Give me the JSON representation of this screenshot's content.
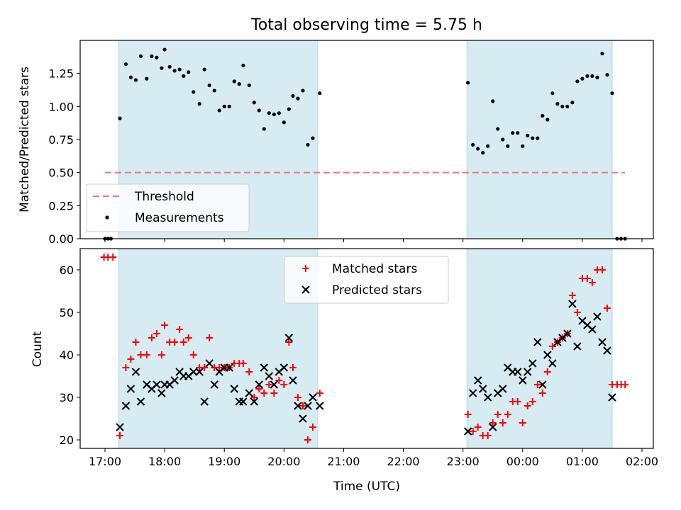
{
  "chart_data": [
    {
      "type": "scatter",
      "title": "Total observing time = 5.75 h",
      "xlabel": "",
      "ylabel": "Matched/Predicted stars",
      "ylim": [
        0,
        1.5
      ],
      "yticks": [
        "0.00",
        "0.25",
        "0.50",
        "0.75",
        "1.00",
        "1.25"
      ],
      "shaded_intervals": [
        [
          "17:14",
          "20:34"
        ],
        [
          "23:04",
          "01:30"
        ]
      ],
      "threshold": {
        "name": "Threshold",
        "value": 0.5,
        "x": [
          "17:00",
          "01:43"
        ],
        "color": "#f07878"
      },
      "legend": {
        "position": "lower-left",
        "entries": [
          "Threshold",
          "Measurements"
        ]
      },
      "series": [
        {
          "name": "Measurements",
          "marker": "dot",
          "color": "#000000",
          "points": [
            [
              "17:00",
              0
            ],
            [
              "17:03",
              0
            ],
            [
              "17:06",
              0
            ],
            [
              "17:15",
              0.91
            ],
            [
              "17:21",
              1.32
            ],
            [
              "17:26",
              1.22
            ],
            [
              "17:31",
              1.2
            ],
            [
              "17:36",
              1.38
            ],
            [
              "17:42",
              1.21
            ],
            [
              "17:47",
              1.38
            ],
            [
              "17:52",
              1.37
            ],
            [
              "17:57",
              1.29
            ],
            [
              "18:00",
              1.43
            ],
            [
              "18:05",
              1.3
            ],
            [
              "18:10",
              1.27
            ],
            [
              "18:15",
              1.28
            ],
            [
              "18:19",
              1.23
            ],
            [
              "18:24",
              1.26
            ],
            [
              "18:29",
              1.11
            ],
            [
              "18:35",
              1.02
            ],
            [
              "18:40",
              1.28
            ],
            [
              "18:45",
              1.16
            ],
            [
              "18:50",
              1.12
            ],
            [
              "18:55",
              0.97
            ],
            [
              "19:00",
              1.0
            ],
            [
              "19:05",
              1.0
            ],
            [
              "19:10",
              1.19
            ],
            [
              "19:15",
              1.17
            ],
            [
              "19:19",
              1.31
            ],
            [
              "19:25",
              1.16
            ],
            [
              "19:30",
              1.03
            ],
            [
              "19:35",
              0.97
            ],
            [
              "19:40",
              0.83
            ],
            [
              "19:45",
              0.95
            ],
            [
              "19:50",
              0.94
            ],
            [
              "19:55",
              0.95
            ],
            [
              "20:00",
              0.88
            ],
            [
              "20:05",
              0.98
            ],
            [
              "20:09",
              1.08
            ],
            [
              "20:14",
              1.06
            ],
            [
              "20:19",
              1.12
            ],
            [
              "20:24",
              0.71
            ],
            [
              "20:29",
              0.76
            ],
            [
              "20:36",
              1.1
            ],
            [
              "23:05",
              1.18
            ],
            [
              "23:10",
              0.71
            ],
            [
              "23:15",
              0.68
            ],
            [
              "23:20",
              0.65
            ],
            [
              "23:25",
              0.7
            ],
            [
              "23:30",
              1.04
            ],
            [
              "23:35",
              0.83
            ],
            [
              "23:40",
              0.75
            ],
            [
              "23:45",
              0.7
            ],
            [
              "23:50",
              0.8
            ],
            [
              "23:55",
              0.8
            ],
            [
              "00:00",
              0.7
            ],
            [
              "00:05",
              0.78
            ],
            [
              "00:10",
              0.76
            ],
            [
              "00:15",
              0.76
            ],
            [
              "00:20",
              0.93
            ],
            [
              "00:25",
              0.9
            ],
            [
              "00:30",
              1.1
            ],
            [
              "00:35",
              1.02
            ],
            [
              "00:40",
              1.0
            ],
            [
              "00:45",
              1.0
            ],
            [
              "00:50",
              1.03
            ],
            [
              "00:55",
              1.19
            ],
            [
              "01:00",
              1.21
            ],
            [
              "01:05",
              1.23
            ],
            [
              "01:10",
              1.23
            ],
            [
              "01:15",
              1.22
            ],
            [
              "01:20",
              1.4
            ],
            [
              "01:25",
              1.24
            ],
            [
              "01:30",
              1.1
            ],
            [
              "01:35",
              0
            ],
            [
              "01:39",
              0
            ],
            [
              "01:43",
              0
            ]
          ]
        }
      ]
    },
    {
      "type": "scatter",
      "title": "",
      "xlabel": "Time (UTC)",
      "ylabel": "Count",
      "ylim": [
        18,
        65
      ],
      "yticks": [
        "20",
        "30",
        "40",
        "50",
        "60"
      ],
      "xticks": [
        "17:00",
        "18:00",
        "19:00",
        "20:00",
        "21:00",
        "22:00",
        "23:00",
        "00:00",
        "01:00",
        "02:00"
      ],
      "shaded_intervals": [
        [
          "17:14",
          "20:34"
        ],
        [
          "23:04",
          "01:30"
        ]
      ],
      "legend": {
        "position": "top-center",
        "entries": [
          "Matched stars",
          "Predicted stars"
        ]
      },
      "series": [
        {
          "name": "Matched stars",
          "marker": "plus",
          "color": "#ff0000",
          "points": [
            [
              "16:59",
              63
            ],
            [
              "17:03",
              63
            ],
            [
              "17:08",
              63
            ],
            [
              "17:15",
              21
            ],
            [
              "17:21",
              37
            ],
            [
              "17:26",
              39
            ],
            [
              "17:31",
              43
            ],
            [
              "17:36",
              40
            ],
            [
              "17:42",
              40
            ],
            [
              "17:47",
              44
            ],
            [
              "17:52",
              45
            ],
            [
              "17:57",
              40
            ],
            [
              "18:00",
              47
            ],
            [
              "18:05",
              43
            ],
            [
              "18:10",
              43
            ],
            [
              "18:15",
              46
            ],
            [
              "18:19",
              43
            ],
            [
              "18:24",
              44
            ],
            [
              "18:29",
              40
            ],
            [
              "18:35",
              37
            ],
            [
              "18:40",
              37
            ],
            [
              "18:45",
              44
            ],
            [
              "18:50",
              37
            ],
            [
              "18:55",
              37
            ],
            [
              "19:00",
              37
            ],
            [
              "19:05",
              37
            ],
            [
              "19:10",
              38
            ],
            [
              "19:15",
              38
            ],
            [
              "19:19",
              38
            ],
            [
              "19:25",
              36
            ],
            [
              "19:30",
              30
            ],
            [
              "19:35",
              32
            ],
            [
              "19:40",
              31
            ],
            [
              "19:45",
              33
            ],
            [
              "19:50",
              31
            ],
            [
              "19:55",
              34
            ],
            [
              "20:00",
              33
            ],
            [
              "20:05",
              43
            ],
            [
              "20:09",
              37
            ],
            [
              "20:14",
              30
            ],
            [
              "20:19",
              28
            ],
            [
              "20:24",
              20
            ],
            [
              "20:29",
              23
            ],
            [
              "20:36",
              31
            ],
            [
              "23:05",
              26
            ],
            [
              "23:10",
              22
            ],
            [
              "23:15",
              23
            ],
            [
              "23:20",
              21
            ],
            [
              "23:25",
              21
            ],
            [
              "23:30",
              24
            ],
            [
              "23:35",
              26
            ],
            [
              "23:40",
              24
            ],
            [
              "23:45",
              26
            ],
            [
              "23:50",
              29
            ],
            [
              "23:55",
              29
            ],
            [
              "00:00",
              24
            ],
            [
              "00:05",
              28
            ],
            [
              "00:10",
              29
            ],
            [
              "00:15",
              33
            ],
            [
              "00:20",
              31
            ],
            [
              "00:25",
              36
            ],
            [
              "00:30",
              42
            ],
            [
              "00:35",
              43
            ],
            [
              "00:40",
              44
            ],
            [
              "00:45",
              45
            ],
            [
              "00:50",
              54
            ],
            [
              "00:55",
              50
            ],
            [
              "01:00",
              58
            ],
            [
              "01:05",
              58
            ],
            [
              "01:10",
              57
            ],
            [
              "01:15",
              60
            ],
            [
              "01:20",
              60
            ],
            [
              "01:25",
              51
            ],
            [
              "01:30",
              33
            ],
            [
              "01:35",
              33
            ],
            [
              "01:39",
              33
            ],
            [
              "01:43",
              33
            ]
          ]
        },
        {
          "name": "Predicted stars",
          "marker": "cross",
          "color": "#000000",
          "points": [
            [
              "17:15",
              23
            ],
            [
              "17:21",
              28
            ],
            [
              "17:26",
              32
            ],
            [
              "17:31",
              36
            ],
            [
              "17:36",
              29
            ],
            [
              "17:42",
              33
            ],
            [
              "17:47",
              32
            ],
            [
              "17:52",
              33
            ],
            [
              "17:57",
              31
            ],
            [
              "18:00",
              33
            ],
            [
              "18:05",
              33
            ],
            [
              "18:10",
              34
            ],
            [
              "18:15",
              36
            ],
            [
              "18:19",
              35
            ],
            [
              "18:24",
              35
            ],
            [
              "18:29",
              36
            ],
            [
              "18:35",
              36
            ],
            [
              "18:40",
              29
            ],
            [
              "18:45",
              38
            ],
            [
              "18:50",
              33
            ],
            [
              "18:55",
              36
            ],
            [
              "19:00",
              37
            ],
            [
              "19:05",
              37
            ],
            [
              "19:10",
              32
            ],
            [
              "19:15",
              29
            ],
            [
              "19:19",
              29
            ],
            [
              "19:25",
              31
            ],
            [
              "19:30",
              29
            ],
            [
              "19:35",
              33
            ],
            [
              "19:40",
              37
            ],
            [
              "19:45",
              35
            ],
            [
              "19:50",
              33
            ],
            [
              "19:55",
              36
            ],
            [
              "20:00",
              37
            ],
            [
              "20:05",
              44
            ],
            [
              "20:09",
              34
            ],
            [
              "20:14",
              28
            ],
            [
              "20:19",
              25
            ],
            [
              "20:24",
              28
            ],
            [
              "20:29",
              30
            ],
            [
              "20:36",
              28
            ],
            [
              "23:05",
              22
            ],
            [
              "23:10",
              31
            ],
            [
              "23:15",
              34
            ],
            [
              "23:20",
              32
            ],
            [
              "23:25",
              30
            ],
            [
              "23:30",
              23
            ],
            [
              "23:35",
              31
            ],
            [
              "23:40",
              32
            ],
            [
              "23:45",
              37
            ],
            [
              "23:50",
              36
            ],
            [
              "23:55",
              36
            ],
            [
              "00:00",
              34
            ],
            [
              "00:05",
              36
            ],
            [
              "00:10",
              38
            ],
            [
              "00:15",
              43
            ],
            [
              "00:20",
              33
            ],
            [
              "00:25",
              40
            ],
            [
              "00:30",
              38
            ],
            [
              "00:35",
              43
            ],
            [
              "00:40",
              44
            ],
            [
              "00:45",
              45
            ],
            [
              "00:50",
              52
            ],
            [
              "00:55",
              42
            ],
            [
              "01:00",
              48
            ],
            [
              "01:05",
              47
            ],
            [
              "01:10",
              46
            ],
            [
              "01:15",
              49
            ],
            [
              "01:20",
              43
            ],
            [
              "01:25",
              41
            ],
            [
              "01:30",
              30
            ]
          ]
        }
      ]
    }
  ]
}
